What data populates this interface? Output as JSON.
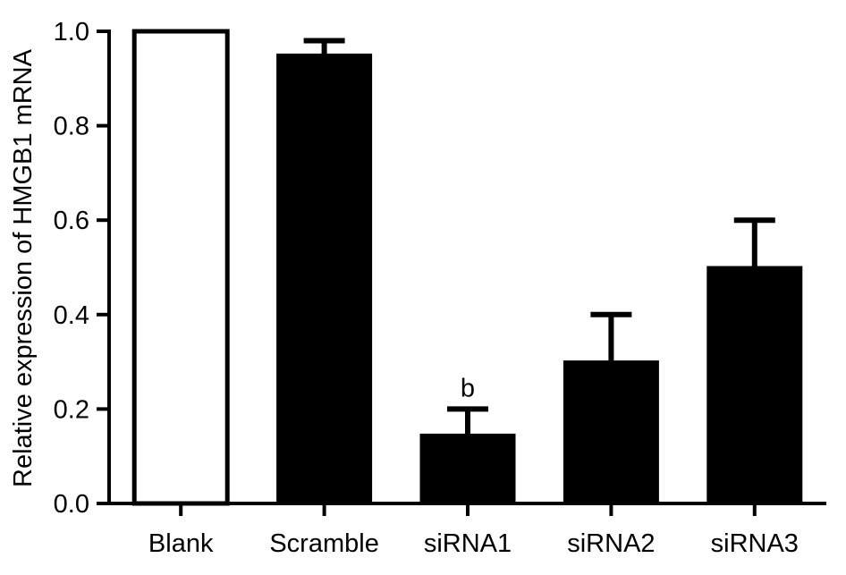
{
  "chart_data": {
    "type": "bar",
    "ylabel": "Relative expression of HMGB1 mRNA",
    "xlabel": "",
    "ylim": [
      0,
      1.0
    ],
    "yticks": [
      "0.0",
      "0.2",
      "0.4",
      "0.6",
      "0.8",
      "1.0"
    ],
    "ytick_values": [
      0,
      0.2,
      0.4,
      0.6,
      0.8,
      1.0
    ],
    "categories": [
      "Blank",
      "Scramble",
      "siRNA1",
      "siRNA2",
      "siRNA3"
    ],
    "values": [
      1.0,
      0.95,
      0.145,
      0.3,
      0.5
    ],
    "errors": [
      0,
      0.03,
      0.055,
      0.1,
      0.1
    ],
    "fills": [
      "#ffffff",
      "#000000",
      "#000000",
      "#000000",
      "#000000"
    ],
    "annotations": [
      {
        "category": "siRNA1",
        "text": "b"
      }
    ],
    "grid": false,
    "legend": "none"
  }
}
